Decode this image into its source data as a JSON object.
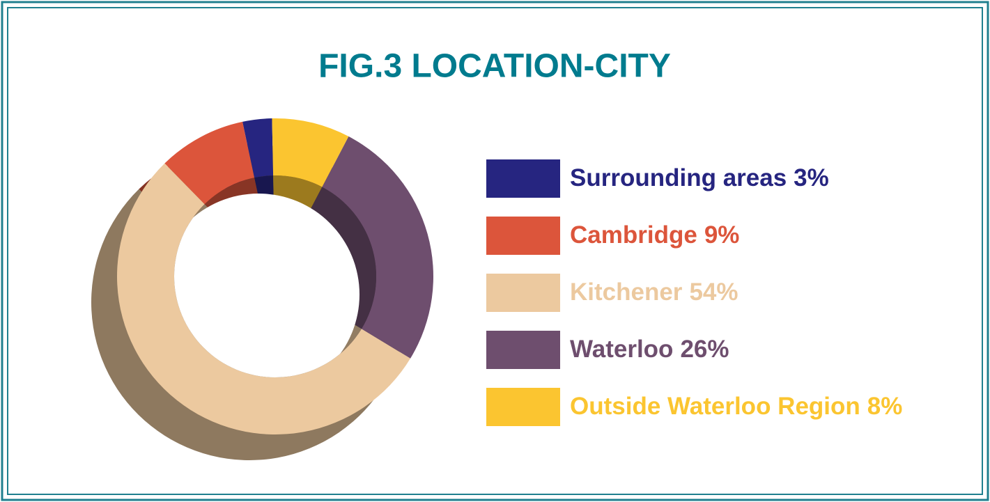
{
  "chart_data": {
    "type": "donut",
    "title": "FIG.3  LOCATION-CITY",
    "categories": [
      "Surrounding areas",
      "Cambridge",
      "Kitchener",
      "Waterloo",
      "Outside Waterloo Region"
    ],
    "values": [
      3,
      9,
      54,
      26,
      8
    ],
    "value_labels": [
      "3%",
      "9%",
      "54%",
      "26%",
      "8%"
    ],
    "colors": [
      "#262580",
      "#dc553b",
      "#ecc99f",
      "#6e4e6e",
      "#fbc530"
    ]
  }
}
